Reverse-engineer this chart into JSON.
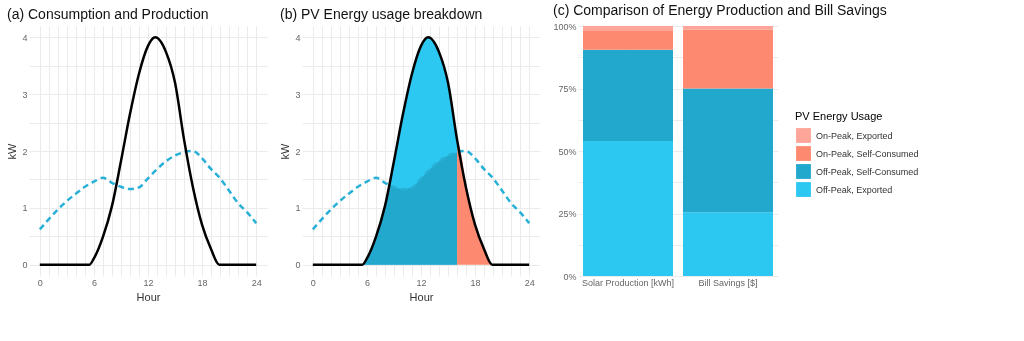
{
  "chart_data": [
    {
      "type": "line",
      "title": "(a) Consumption and Production",
      "xlabel": "Hour",
      "ylabel": "kW",
      "xlim": [
        -1.2,
        25.2
      ],
      "ylim": [
        -0.2,
        4.2
      ],
      "xticks": [
        0,
        {
          "value": 1,
          "label": null
        },
        {
          "value": 2,
          "label": null
        },
        {
          "value": 3,
          "label": null
        },
        {
          "value": 4,
          "label": null
        },
        {
          "value": 5,
          "label": null
        },
        6,
        {
          "value": 7,
          "label": null
        },
        {
          "value": 8,
          "label": null
        },
        {
          "value": 9,
          "label": null
        },
        {
          "value": 10,
          "label": null
        },
        {
          "value": 11,
          "label": null
        },
        12,
        {
          "value": 13,
          "label": null
        },
        {
          "value": 14,
          "label": null
        },
        {
          "value": 15,
          "label": null
        },
        {
          "value": 16,
          "label": null
        },
        {
          "value": 17,
          "label": null
        },
        18,
        {
          "value": 19,
          "label": null
        },
        {
          "value": 20,
          "label": null
        },
        {
          "value": 21,
          "label": null
        },
        {
          "value": 22,
          "label": null
        },
        {
          "value": 23,
          "label": null
        },
        24
      ],
      "yticks": [
        0,
        {
          "value": 0.5,
          "label": null
        },
        1,
        {
          "value": 1.5,
          "label": null
        },
        2,
        {
          "value": 2.5,
          "label": null
        },
        3,
        {
          "value": 3.5,
          "label": null
        },
        4
      ],
      "grid": true,
      "series": [
        {
          "color": "#29b0d6",
          "line_style": "dashed",
          "x": [
            0,
            1,
            2,
            3,
            4,
            5,
            6,
            7,
            8,
            9,
            10,
            11,
            12,
            13,
            14,
            15,
            16,
            17,
            18,
            19,
            20,
            21,
            22,
            23,
            24
          ],
          "values": [
            0.62,
            0.8,
            0.97,
            1.12,
            1.25,
            1.37,
            1.46,
            1.53,
            1.44,
            1.37,
            1.33,
            1.36,
            1.52,
            1.68,
            1.82,
            1.92,
            1.98,
            2.0,
            1.87,
            1.68,
            1.52,
            1.3,
            1.08,
            0.92,
            0.73
          ]
        },
        {
          "color": "#000000",
          "line_style": "solid",
          "x": [
            0,
            5.5,
            6,
            7,
            8,
            9,
            10,
            11,
            12,
            12.8,
            14,
            15,
            16,
            17,
            18,
            19,
            19.9,
            24
          ],
          "values": [
            0,
            0,
            0.11,
            0.49,
            1.03,
            1.82,
            2.65,
            3.36,
            3.85,
            4.0,
            3.74,
            3.2,
            2.2,
            1.35,
            0.7,
            0.27,
            0,
            0
          ]
        }
      ]
    },
    {
      "type": "line",
      "title": "(b) PV Energy usage breakdown",
      "xlabel": "Hour",
      "ylabel": "kW",
      "xlim": [
        -1.2,
        25.2
      ],
      "ylim": [
        -0.2,
        4.2
      ],
      "xticks": [
        0,
        {
          "value": 1,
          "label": null
        },
        {
          "value": 2,
          "label": null
        },
        {
          "value": 3,
          "label": null
        },
        {
          "value": 4,
          "label": null
        },
        {
          "value": 5,
          "label": null
        },
        6,
        {
          "value": 7,
          "label": null
        },
        {
          "value": 8,
          "label": null
        },
        {
          "value": 9,
          "label": null
        },
        {
          "value": 10,
          "label": null
        },
        {
          "value": 11,
          "label": null
        },
        12,
        {
          "value": 13,
          "label": null
        },
        {
          "value": 14,
          "label": null
        },
        {
          "value": 15,
          "label": null
        },
        {
          "value": 16,
          "label": null
        },
        {
          "value": 17,
          "label": null
        },
        18,
        {
          "value": 19,
          "label": null
        },
        {
          "value": 20,
          "label": null
        },
        {
          "value": 21,
          "label": null
        },
        {
          "value": 22,
          "label": null
        },
        {
          "value": 23,
          "label": null
        },
        24
      ],
      "yticks": [
        0,
        {
          "value": 0.5,
          "label": null
        },
        1,
        {
          "value": 1.5,
          "label": null
        },
        2,
        {
          "value": 2.5,
          "label": null
        },
        3,
        {
          "value": 3.5,
          "label": null
        },
        4
      ],
      "grid": true,
      "series": [
        {
          "type": "area",
          "color": "#2dc8f2",
          "x": [
            5.5,
            6,
            7,
            8,
            8.5,
            9,
            10,
            11,
            12,
            12.8,
            14,
            15,
            16
          ],
          "values": [
            0,
            0.11,
            0.49,
            1.03,
            1.41,
            1.82,
            2.65,
            3.36,
            3.85,
            4.0,
            3.74,
            3.2,
            2.2
          ]
        },
        {
          "type": "area",
          "color": "#23a8cd",
          "x": [
            5.5,
            6,
            7,
            8,
            8.5,
            9,
            10,
            11,
            12,
            12.8,
            14,
            15,
            16
          ],
          "values": [
            0,
            0.11,
            0.49,
            1.03,
            1.41,
            1.37,
            1.33,
            1.36,
            1.52,
            1.65,
            1.82,
            1.92,
            1.98
          ]
        },
        {
          "type": "area",
          "color": "#fd8a70",
          "x": [
            16,
            16.4,
            17,
            18,
            19,
            19.9
          ],
          "values": [
            2.2,
            2.0,
            1.35,
            0.7,
            0.27,
            0
          ]
        },
        {
          "color": "#29b0d6",
          "line_style": "dashed",
          "x": [
            0,
            1,
            2,
            3,
            4,
            5,
            6,
            7,
            8,
            9,
            10,
            11,
            12,
            13,
            14,
            15,
            16,
            17,
            18,
            19,
            20,
            21,
            22,
            23,
            24
          ],
          "values": [
            0.62,
            0.8,
            0.97,
            1.12,
            1.25,
            1.37,
            1.46,
            1.53,
            1.44,
            1.37,
            1.33,
            1.36,
            1.52,
            1.68,
            1.82,
            1.92,
            1.98,
            2.0,
            1.87,
            1.68,
            1.52,
            1.3,
            1.08,
            0.92,
            0.73
          ]
        },
        {
          "color": "#000000",
          "line_style": "solid",
          "x": [
            0,
            5.5,
            6,
            7,
            8,
            9,
            10,
            11,
            12,
            12.8,
            14,
            15,
            16,
            17,
            18,
            19,
            19.9,
            24
          ],
          "values": [
            0,
            0,
            0.11,
            0.49,
            1.03,
            1.82,
            2.65,
            3.36,
            3.85,
            4.0,
            3.74,
            3.2,
            2.2,
            1.35,
            0.7,
            0.27,
            0,
            0
          ]
        }
      ]
    },
    {
      "type": "bar",
      "stacked": true,
      "title": "(c) Comparison of Energy Production and Bill Savings",
      "legend_title": "PV Energy Usage",
      "legend": "right",
      "grid": true,
      "categories": [
        "Solar Production [kWh]",
        "Bill Savings [$]"
      ],
      "ylim": [
        0,
        100
      ],
      "yticks": [
        {
          "value": 0,
          "label": "0%"
        },
        {
          "value": 12.5,
          "label": null
        },
        {
          "value": 25,
          "label": "25%"
        },
        {
          "value": 37.5,
          "label": null
        },
        {
          "value": 50,
          "label": "50%"
        },
        {
          "value": 62.5,
          "label": null
        },
        {
          "value": 75,
          "label": "75%"
        },
        {
          "value": 87.5,
          "label": null
        },
        {
          "value": 100,
          "label": "100%"
        }
      ],
      "series": [
        {
          "name": "Off-Peak, Exported",
          "color": "#2dc8f2",
          "values": [
            54,
            25.5
          ]
        },
        {
          "name": "Off-Peak, Self-Consumed",
          "color": "#23a8cd",
          "values": [
            36.5,
            49.5
          ]
        },
        {
          "name": "On-Peak, Self-Consumed",
          "color": "#fd8a70",
          "values": [
            7.5,
            23.5
          ]
        },
        {
          "name": "On-Peak, Exported",
          "color": "#fca598",
          "values": [
            2,
            1.5
          ]
        }
      ]
    }
  ]
}
